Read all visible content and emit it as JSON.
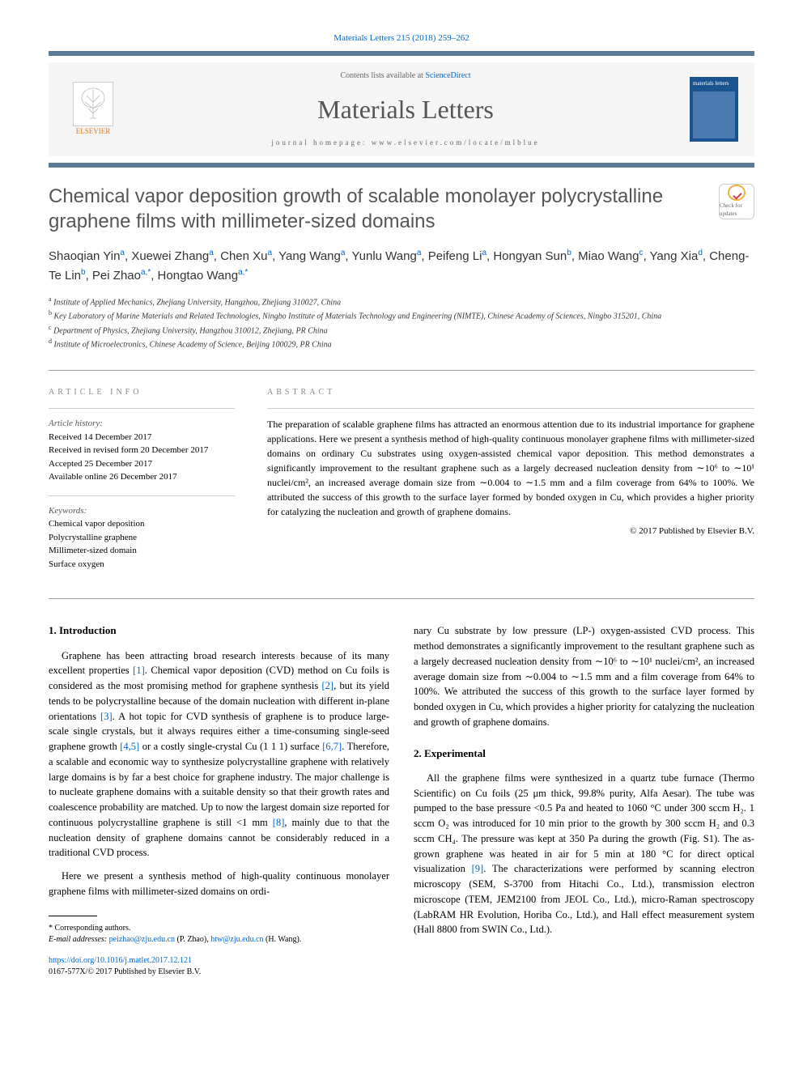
{
  "citation": "Materials Letters 215 (2018) 259–262",
  "header": {
    "publisher": "ELSEVIER",
    "contents_prefix": "Contents lists available at ",
    "contents_link": "ScienceDirect",
    "journal_name": "Materials Letters",
    "homepage_prefix": "journal homepage: ",
    "homepage_url": "www.elsevier.com/locate/mlblue",
    "cover_text": "materials letters"
  },
  "article": {
    "title": "Chemical vapor deposition growth of scalable monolayer polycrystalline graphene films with millimeter-sized domains",
    "check_label": "Check for updates",
    "authors_html": "Shaoqian Yin<sup>a</sup>, Xuewei Zhang<sup>a</sup>, Chen Xu<sup>a</sup>, Yang Wang<sup>a</sup>, Yunlu Wang<sup>a</sup>, Peifeng Li<sup>a</sup>, Hongyan Sun<sup>b</sup>, Miao Wang<sup>c</sup>, Yang Xia<sup>d</sup>, Cheng-Te Lin<sup>b</sup>, Pei Zhao<sup>a,<span class=\"star\">*</span></sup>, Hongtao Wang<sup>a,<span class=\"star\">*</span></sup>",
    "affiliations": [
      {
        "sup": "a",
        "text": "Institute of Applied Mechanics, Zhejiang University, Hangzhou, Zhejiang 310027, China"
      },
      {
        "sup": "b",
        "text": "Key Laboratory of Marine Materials and Related Technologies, Ningbo Institute of Materials Technology and Engineering (NIMTE), Chinese Academy of Sciences, Ningbo 315201, China"
      },
      {
        "sup": "c",
        "text": "Department of Physics, Zhejiang University, Hangzhou 310012, Zhejiang, PR China"
      },
      {
        "sup": "d",
        "text": "Institute of Microelectronics, Chinese Academy of Science, Beijing 100029, PR China"
      }
    ]
  },
  "info": {
    "heading": "article info",
    "history_label": "Article history:",
    "history": [
      "Received 14 December 2017",
      "Received in revised form 20 December 2017",
      "Accepted 25 December 2017",
      "Available online 26 December 2017"
    ],
    "keywords_label": "Keywords:",
    "keywords": [
      "Chemical vapor deposition",
      "Polycrystalline graphene",
      "Millimeter-sized domain",
      "Surface oxygen"
    ]
  },
  "abstract": {
    "heading": "abstract",
    "text": "The preparation of scalable graphene films has attracted an enormous attention due to its industrial importance for graphene applications. Here we present a synthesis method of high-quality continuous monolayer graphene films with millimeter-sized domains on ordinary Cu substrates using oxygen-assisted chemical vapor deposition. This method demonstrates a significantly improvement to the resultant graphene such as a largely decreased nucleation density from ∼10⁶ to ∼10¹ nuclei/cm², an increased average domain size from ∼0.004 to ∼1.5 mm and a film coverage from 64% to 100%. We attributed the success of this growth to the surface layer formed by bonded oxygen in Cu, which provides a higher priority for catalyzing the nucleation and growth of graphene domains.",
    "copyright": "© 2017 Published by Elsevier B.V."
  },
  "body": {
    "left": {
      "heading": "1. Introduction",
      "p1": "Graphene has been attracting broad research interests because of its many excellent properties <span class=\"ref\">[1]</span>. Chemical vapor deposition (CVD) method on Cu foils is considered as the most promising method for graphene synthesis <span class=\"ref\">[2]</span>, but its yield tends to be polycrystalline because of the domain nucleation with different in-plane orientations <span class=\"ref\">[3]</span>. A hot topic for CVD synthesis of graphene is to produce large-scale single crystals, but it always requires either a time-consuming single-seed graphene growth <span class=\"ref\">[4,5]</span> or a costly single-crystal Cu (1 1 1) surface <span class=\"ref\">[6,7]</span>. Therefore, a scalable and economic way to synthesize polycrystalline graphene with relatively large domains is by far a best choice for graphene industry. The major challenge is to nucleate graphene domains with a suitable density so that their growth rates and coalescence probability are matched. Up to now the largest domain size reported for continuous polycrystalline graphene is still <1 mm <span class=\"ref\">[8]</span>, mainly due to that the nucleation density of graphene domains cannot be considerably reduced in a traditional CVD process.",
      "p2": "Here we present a synthesis method of high-quality continuous monolayer graphene films with millimeter-sized domains on ordi-"
    },
    "right": {
      "p1": "nary Cu substrate by low pressure (LP-) oxygen-assisted CVD process. This method demonstrates a significantly improvement to the resultant graphene such as a largely decreased nucleation density from ∼10⁶ to ∼10¹ nuclei/cm², an increased average domain size from ∼0.004 to ∼1.5 mm and a film coverage from 64% to 100%. We attributed the success of this growth to the surface layer formed by bonded oxygen in Cu, which provides a higher priority for catalyzing the nucleation and growth of graphene domains.",
      "heading": "2. Experimental",
      "p2": "All the graphene films were synthesized in a quartz tube furnace (Thermo Scientific) on Cu foils (25 μm thick, 99.8% purity, Alfa Aesar). The tube was pumped to the base pressure <0.5 Pa and heated to 1060 °C under 300 sccm H₂. 1 sccm O₂ was introduced for 10 min prior to the growth by 300 sccm H₂ and 0.3 sccm CH₄. The pressure was kept at 350 Pa during the growth (Fig. S1). The as-grown graphene was heated in air for 5 min at 180 °C for direct optical visualization <span class=\"ref\">[9]</span>. The characterizations were performed by scanning electron microscopy (SEM, S-3700 from Hitachi Co., Ltd.), transmission electron microscope (TEM, JEM2100 from JEOL Co., Ltd.), micro-Raman spectroscopy (LabRAM HR Evolution, Horiba Co., Ltd.), and Hall effect measurement system (Hall 8800 from SWIN Co., Ltd.)."
    }
  },
  "footer": {
    "corr_label": "* Corresponding authors.",
    "email_label": "E-mail addresses: ",
    "email1": "peizhao@zju.edu.cn",
    "email1_name": " (P. Zhao), ",
    "email2": "htw@zju.edu.cn",
    "email2_name": " (H. Wang).",
    "doi": "https://doi.org/10.1016/j.matlet.2017.12.121",
    "issn": "0167-577X/© 2017 Published by Elsevier B.V."
  },
  "colors": {
    "bar": "#5b7a99",
    "link": "#0066cc",
    "orange": "#e67817"
  }
}
